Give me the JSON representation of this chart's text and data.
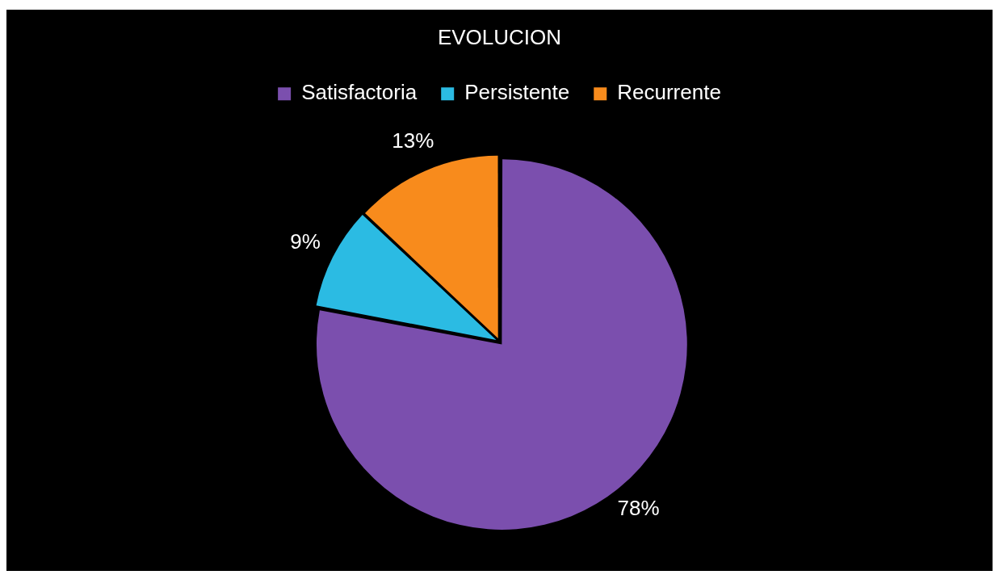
{
  "chart_data": {
    "type": "pie",
    "title": "EVOLUCION",
    "categories": [
      "Satisfactoria",
      "Persistente",
      "Recurrente"
    ],
    "values": [
      78,
      9,
      13
    ],
    "colors": [
      "#7b4fae",
      "#2bbbe3",
      "#f88b1c"
    ],
    "value_labels": [
      "78%",
      "9%",
      "13%"
    ],
    "legend": "top"
  }
}
